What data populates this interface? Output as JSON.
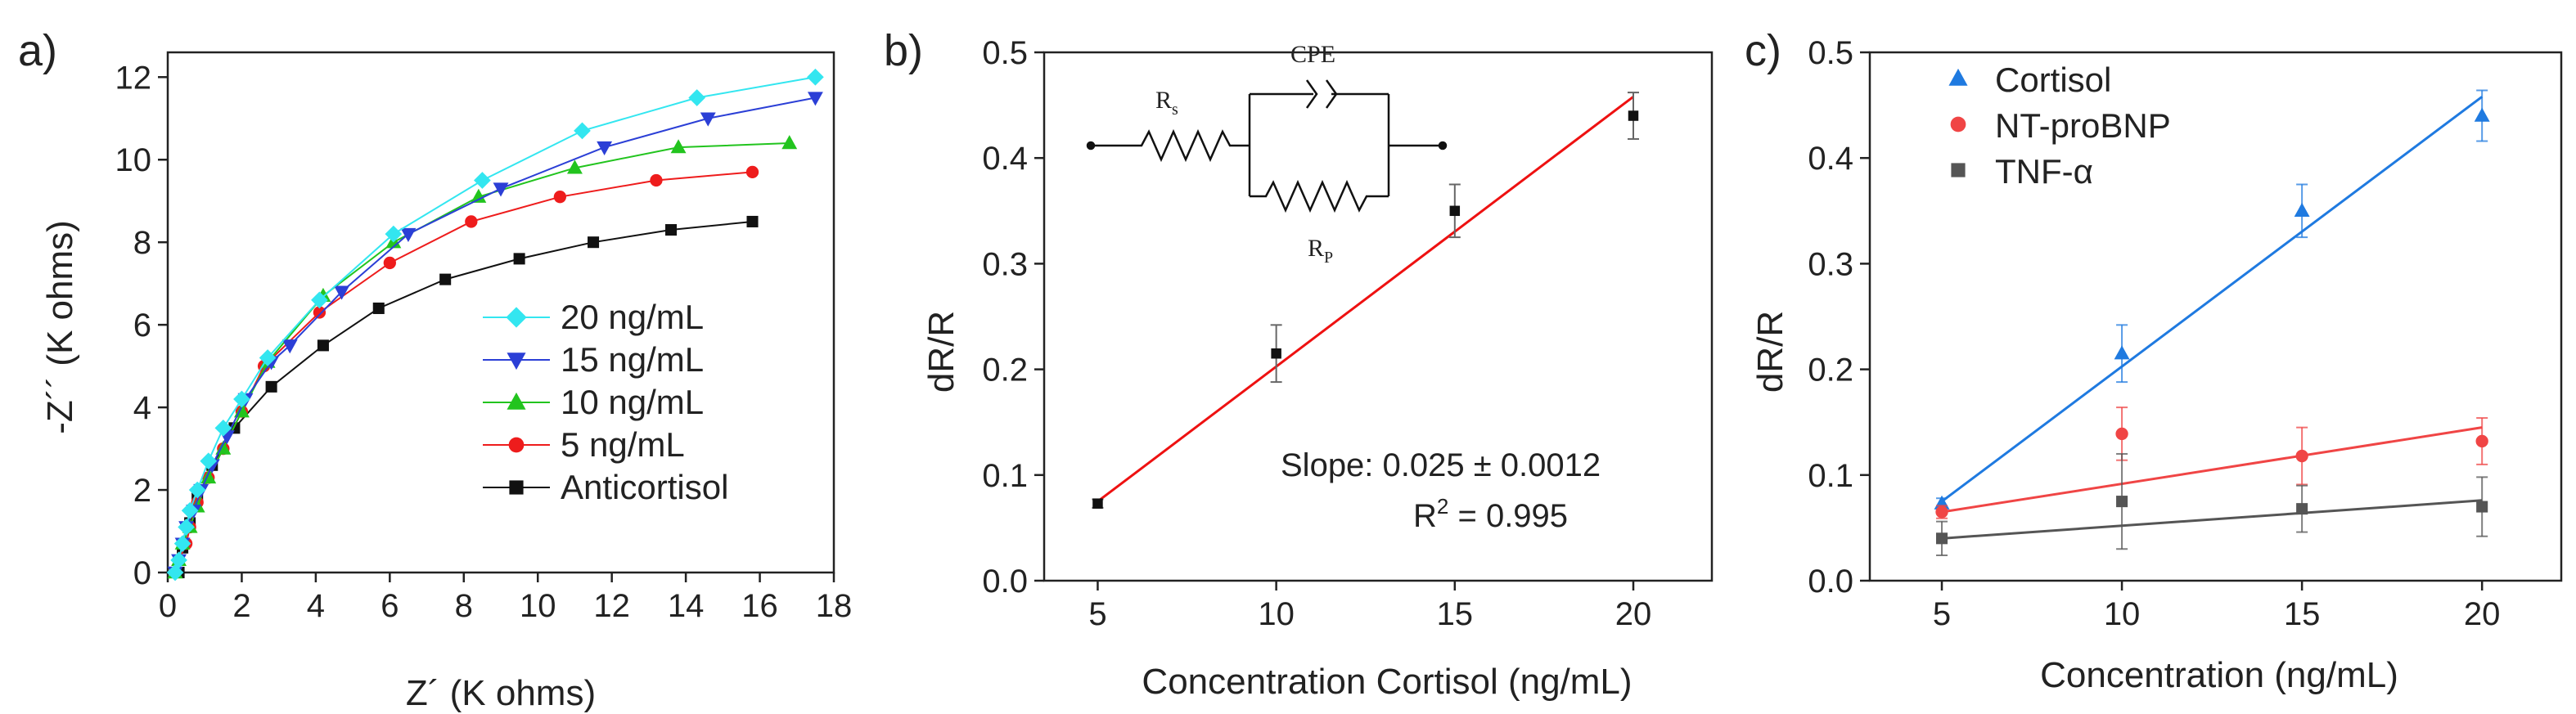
{
  "chart_data": [
    {
      "type": "line",
      "panel_label": "a)",
      "title": "",
      "xlabel": "Z´ (K ohms)",
      "ylabel": "-Z´´ (K ohms)",
      "xlim": [
        0,
        18
      ],
      "ylim": [
        0,
        12.6
      ],
      "xticks": [
        "0",
        "2",
        "4",
        "6",
        "8",
        "10",
        "12",
        "14",
        "16",
        "18"
      ],
      "yticks": [
        "0",
        "2",
        "4",
        "6",
        "8",
        "10",
        "12"
      ],
      "legend_position": "bottom-right",
      "series": [
        {
          "name": "20 ng/mL",
          "color": "#33e6f0",
          "marker": "diamond",
          "x": [
            0.2,
            0.3,
            0.4,
            0.5,
            0.6,
            0.8,
            1.1,
            1.5,
            2.0,
            2.7,
            4.1,
            6.1,
            8.5,
            11.2,
            14.3,
            17.5
          ],
          "y": [
            0.0,
            0.3,
            0.7,
            1.1,
            1.5,
            2.0,
            2.7,
            3.5,
            4.2,
            5.2,
            6.6,
            8.2,
            9.5,
            10.7,
            11.5,
            12.0
          ]
        },
        {
          "name": "15 ng/mL",
          "color": "#2b3fd6",
          "marker": "triangle-down",
          "x": [
            0.2,
            0.3,
            0.4,
            0.5,
            0.7,
            0.9,
            1.2,
            1.6,
            2.1,
            2.8,
            3.3,
            4.7,
            6.5,
            9.0,
            11.8,
            14.6,
            17.5
          ],
          "y": [
            0.0,
            0.3,
            0.7,
            1.1,
            1.5,
            2.0,
            2.6,
            3.3,
            4.2,
            5.1,
            5.5,
            6.8,
            8.2,
            9.3,
            10.3,
            11.0,
            11.5
          ]
        },
        {
          "name": "10 ng/mL",
          "color": "#22c41e",
          "marker": "triangle-up",
          "x": [
            0.2,
            0.3,
            0.4,
            0.6,
            0.8,
            1.1,
            1.5,
            2.0,
            2.7,
            4.2,
            6.1,
            8.4,
            11.0,
            13.8,
            16.8
          ],
          "y": [
            0.0,
            0.3,
            0.7,
            1.1,
            1.6,
            2.3,
            3.0,
            3.9,
            5.1,
            6.7,
            8.0,
            9.1,
            9.8,
            10.3,
            10.4
          ]
        },
        {
          "name": "5 ng/mL",
          "color": "#ee1c1c",
          "marker": "circle",
          "x": [
            0.2,
            0.3,
            0.5,
            0.6,
            0.8,
            1.1,
            1.5,
            2.0,
            2.6,
            4.1,
            6.0,
            8.2,
            10.6,
            13.2,
            15.8
          ],
          "y": [
            0.0,
            0.3,
            0.7,
            1.1,
            1.7,
            2.3,
            3.0,
            3.9,
            5.0,
            6.3,
            7.5,
            8.5,
            9.1,
            9.5,
            9.7
          ]
        },
        {
          "name": "Anticortisol",
          "color": "#111111",
          "marker": "square",
          "x": [
            0.3,
            0.4,
            0.6,
            0.8,
            1.2,
            1.8,
            2.8,
            4.2,
            5.7,
            7.5,
            9.5,
            11.5,
            13.6,
            15.8
          ],
          "y": [
            0.0,
            0.6,
            1.2,
            1.8,
            2.6,
            3.5,
            4.5,
            5.5,
            6.4,
            7.1,
            7.6,
            8.0,
            8.3,
            8.5
          ]
        }
      ]
    },
    {
      "type": "scatter",
      "panel_label": "b)",
      "title": "",
      "xlabel": "Concentration Cortisol (ng/mL)",
      "ylabel": "dR/R",
      "xlim": [
        3.5,
        22.2
      ],
      "ylim": [
        0.0,
        0.5
      ],
      "xticks": [
        "5",
        "10",
        "15",
        "20"
      ],
      "yticks": [
        "0.0",
        "0.1",
        "0.2",
        "0.3",
        "0.4",
        "0.5"
      ],
      "x": [
        5,
        10,
        15,
        20
      ],
      "y": [
        0.073,
        0.215,
        0.35,
        0.44
      ],
      "error": [
        0.004,
        0.027,
        0.025,
        0.022
      ],
      "fit": {
        "x": [
          5,
          20
        ],
        "y": [
          0.075,
          0.458
        ],
        "color": "#ee1111"
      },
      "annotation_slope_label": "Slope: ",
      "annotation_slope_value": "0.025 ± 0.0012",
      "annotation_r2_label": "R",
      "annotation_r2_sup": "2",
      "annotation_r2_value": " = 0.995",
      "inset_circuit": {
        "element_rs": "R",
        "element_rs_sub": "s",
        "element_cpe": "CPE",
        "element_rp": "R",
        "element_rp_sub": "P"
      }
    },
    {
      "type": "scatter",
      "panel_label": "c)",
      "title": "",
      "xlabel": "Concentration (ng/mL)",
      "ylabel": "dR/R",
      "xlim": [
        3.0,
        22.2
      ],
      "ylim": [
        0.0,
        0.5
      ],
      "xticks": [
        "5",
        "10",
        "15",
        "20"
      ],
      "yticks": [
        "0.0",
        "0.1",
        "0.2",
        "0.3",
        "0.4",
        "0.5"
      ],
      "legend_position": "top-left",
      "series": [
        {
          "name": "Cortisol",
          "color": "#1f7ae0",
          "marker": "triangle-up",
          "x": [
            5,
            10,
            15,
            20
          ],
          "y": [
            0.073,
            0.215,
            0.35,
            0.44
          ],
          "error": [
            0.005,
            0.027,
            0.025,
            0.024
          ],
          "fit": {
            "x": [
              5,
              20
            ],
            "y": [
              0.075,
              0.458
            ]
          }
        },
        {
          "name": "NT-proBNP",
          "color": "#f04545",
          "marker": "circle",
          "x": [
            5,
            10,
            15,
            20
          ],
          "y": [
            0.065,
            0.139,
            0.118,
            0.132
          ],
          "error": [
            0.006,
            0.025,
            0.027,
            0.022
          ],
          "fit": {
            "x": [
              5,
              20
            ],
            "y": [
              0.065,
              0.145
            ]
          }
        },
        {
          "name": "TNF-α",
          "color": "#555555",
          "marker": "square",
          "x": [
            5,
            10,
            15,
            20
          ],
          "y": [
            0.04,
            0.075,
            0.068,
            0.07
          ],
          "error": [
            0.016,
            0.045,
            0.022,
            0.028
          ],
          "fit": {
            "x": [
              5,
              20
            ],
            "y": [
              0.04,
              0.076
            ]
          }
        }
      ]
    }
  ]
}
